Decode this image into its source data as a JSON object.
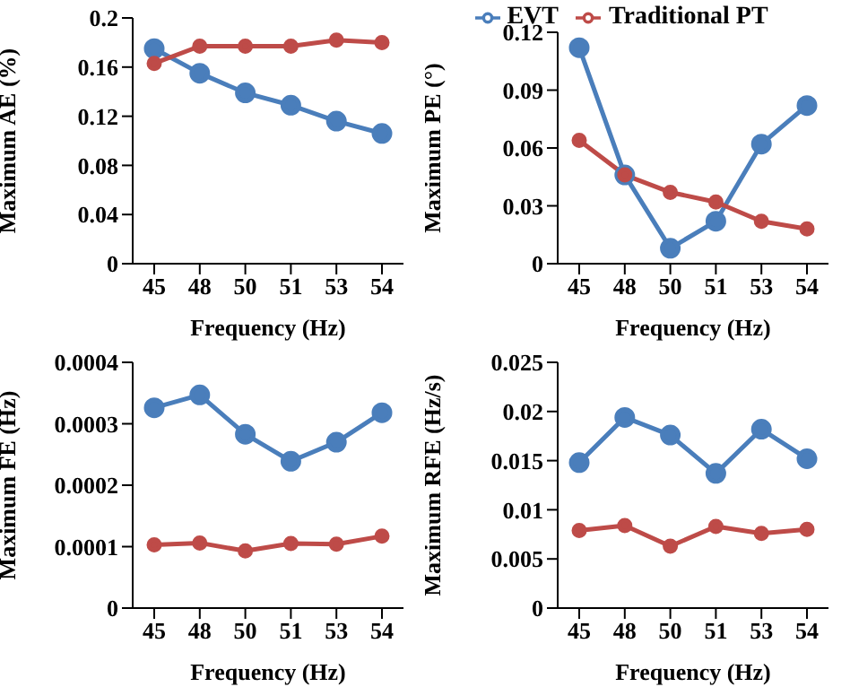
{
  "chart_data": [
    {
      "type": "line",
      "categories": [
        "45",
        "48",
        "50",
        "51",
        "53",
        "54"
      ],
      "xlabel": "Frequency (Hz)",
      "ylabel": "Maximum AE (%)",
      "ylim": [
        0,
        0.2
      ],
      "yticks": [
        0,
        0.04,
        0.08,
        0.12,
        0.16,
        0.2
      ],
      "grid": false,
      "marker": "circle",
      "legend": false,
      "series": [
        {
          "color": "#4a7ebb",
          "values": [
            0.175,
            0.155,
            0.139,
            0.129,
            0.116,
            0.106
          ]
        },
        {
          "color": "#be4b48",
          "values": [
            0.163,
            0.177,
            0.177,
            0.177,
            0.182,
            0.18
          ]
        }
      ]
    },
    {
      "type": "line",
      "categories": [
        "45",
        "48",
        "50",
        "51",
        "53",
        "54"
      ],
      "xlabel": "Frequency (Hz)",
      "ylabel": "Maximum PE (°)",
      "ylim": [
        0,
        0.12
      ],
      "yticks": [
        0,
        0.03,
        0.06,
        0.09,
        0.12
      ],
      "grid": false,
      "marker": "circle",
      "legend": "top",
      "series": [
        {
          "name": "EVT",
          "color": "#4a7ebb",
          "values": [
            0.112,
            0.046,
            0.008,
            0.022,
            0.062,
            0.082
          ]
        },
        {
          "name": "Traditional PT",
          "color": "#be4b48",
          "values": [
            0.064,
            0.046,
            0.037,
            0.032,
            0.022,
            0.018
          ]
        }
      ]
    },
    {
      "type": "line",
      "categories": [
        "45",
        "48",
        "50",
        "51",
        "53",
        "54"
      ],
      "xlabel": "Frequency (Hz)",
      "ylabel": "Maximum FE (Hz)",
      "ylim": [
        0,
        0.0004
      ],
      "yticks": [
        0,
        0.0001,
        0.0002,
        0.0003,
        0.0004
      ],
      "grid": false,
      "marker": "circle",
      "legend": false,
      "series": [
        {
          "color": "#4a7ebb",
          "values": [
            0.000326,
            0.000347,
            0.000283,
            0.000239,
            0.00027,
            0.000318
          ]
        },
        {
          "color": "#be4b48",
          "values": [
            0.000103,
            0.000106,
            9.3e-05,
            0.000105,
            0.000104,
            0.000117
          ]
        }
      ]
    },
    {
      "type": "line",
      "categories": [
        "45",
        "48",
        "50",
        "51",
        "53",
        "54"
      ],
      "xlabel": "Frequency (Hz)",
      "ylabel": "Maximum RFE (Hz/s)",
      "ylim": [
        0,
        0.025
      ],
      "yticks": [
        0,
        0.005,
        0.01,
        0.015,
        0.02,
        0.025
      ],
      "grid": false,
      "marker": "circle",
      "legend": false,
      "series": [
        {
          "color": "#4a7ebb",
          "values": [
            0.0148,
            0.0194,
            0.0176,
            0.0137,
            0.0182,
            0.0152
          ]
        },
        {
          "color": "#be4b48",
          "values": [
            0.0079,
            0.0084,
            0.0063,
            0.0083,
            0.0076,
            0.008
          ]
        }
      ]
    }
  ]
}
